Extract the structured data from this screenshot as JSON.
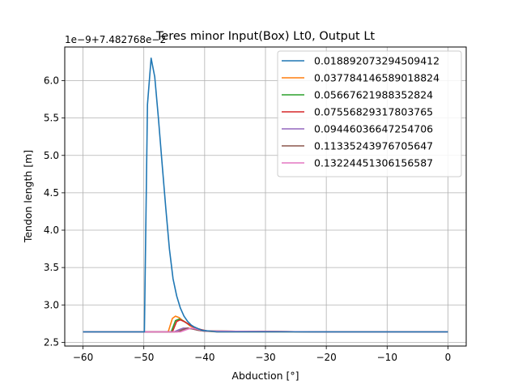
{
  "chart_data": {
    "type": "line",
    "title": "Teres minor Input(Box) Lt0, Output Lt",
    "xlabel": "Abduction [°]",
    "ylabel": "Tendon length [m]",
    "offset_text": "1e−9+7.482768e−2",
    "xlim": [
      -63,
      3
    ],
    "ylim": [
      2.45,
      6.45
    ],
    "xticks": [
      -60,
      -50,
      -40,
      -30,
      -20,
      -10,
      0
    ],
    "xtick_labels": [
      "−60",
      "−50",
      "−40",
      "−30",
      "−20",
      "−10",
      "0"
    ],
    "yticks": [
      2.5,
      3.0,
      3.5,
      4.0,
      4.5,
      5.0,
      5.5,
      6.0
    ],
    "ytick_labels": [
      "2.5",
      "3.0",
      "3.5",
      "4.0",
      "4.5",
      "5.0",
      "5.5",
      "6.0"
    ],
    "grid": true,
    "legend_position": "top-right",
    "series": [
      {
        "name": "0.018892073294509412",
        "color": "#1f77b4",
        "x": [
          -60,
          -55,
          -50,
          -49.9,
          -49.4,
          -48.8,
          -48.2,
          -47.6,
          -47.0,
          -46.4,
          -45.8,
          -45.2,
          -44.6,
          -44.0,
          -43.4,
          -42.8,
          -42.2,
          -41.6,
          -41.0,
          -40.4,
          -39.8,
          -39.2,
          -38.6,
          -38.0,
          -37.0,
          -30,
          -20,
          -10,
          0
        ],
        "y": [
          2.64,
          2.64,
          2.64,
          2.64,
          5.68,
          6.3,
          6.05,
          5.5,
          4.9,
          4.3,
          3.75,
          3.35,
          3.12,
          2.96,
          2.85,
          2.78,
          2.73,
          2.7,
          2.68,
          2.66,
          2.655,
          2.65,
          2.645,
          2.64,
          2.64,
          2.64,
          2.64,
          2.64,
          2.64
        ]
      },
      {
        "name": "0.037784146589018824",
        "color": "#ff7f0e",
        "x": [
          -60,
          -46,
          -45.3,
          -44.8,
          -44.2,
          -43.6,
          -43.0,
          -42.4,
          -41.8,
          -41.2,
          -40.6,
          -40.0,
          -38,
          -20,
          0
        ],
        "y": [
          2.64,
          2.64,
          2.82,
          2.85,
          2.83,
          2.79,
          2.76,
          2.72,
          2.7,
          2.68,
          2.66,
          2.65,
          2.64,
          2.64,
          2.64
        ]
      },
      {
        "name": "0.05667621988352824",
        "color": "#2ca02c",
        "x": [
          -60,
          -45.5,
          -44.8,
          -44.2,
          -43.6,
          -43.0,
          -42.4,
          -41.6,
          -40.8,
          -39.5,
          -20,
          0
        ],
        "y": [
          2.64,
          2.64,
          2.79,
          2.81,
          2.79,
          2.76,
          2.73,
          2.7,
          2.67,
          2.65,
          2.64,
          2.64
        ]
      },
      {
        "name": "0.07556829317803765",
        "color": "#d62728",
        "x": [
          -60,
          -45.3,
          -44.6,
          -44.0,
          -43.4,
          -42.8,
          -42.2,
          -41.4,
          -40.6,
          -39.5,
          -20,
          0
        ],
        "y": [
          2.64,
          2.64,
          2.78,
          2.8,
          2.78,
          2.75,
          2.72,
          2.69,
          2.67,
          2.65,
          2.64,
          2.64
        ]
      },
      {
        "name": "0.09446036647254706",
        "color": "#9467bd",
        "x": [
          -60,
          -45,
          -44.2,
          -43.5,
          -42.8,
          -42.0,
          -41.0,
          -40,
          -20,
          0
        ],
        "y": [
          2.64,
          2.64,
          2.67,
          2.69,
          2.69,
          2.68,
          2.66,
          2.65,
          2.64,
          2.64
        ]
      },
      {
        "name": "0.11335243976705647",
        "color": "#8c564b",
        "x": [
          -60,
          -44.5,
          -43.6,
          -42.8,
          -42.0,
          -41.0,
          -40,
          -20,
          0
        ],
        "y": [
          2.64,
          2.64,
          2.67,
          2.69,
          2.68,
          2.66,
          2.65,
          2.64,
          2.64
        ]
      },
      {
        "name": "0.13224451306156587",
        "color": "#e377c2",
        "x": [
          -60,
          -44,
          -43.0,
          -42.2,
          -41.4,
          -40.5,
          -39.5,
          -20,
          0
        ],
        "y": [
          2.64,
          2.64,
          2.67,
          2.69,
          2.68,
          2.66,
          2.65,
          2.64,
          2.64
        ]
      }
    ]
  }
}
